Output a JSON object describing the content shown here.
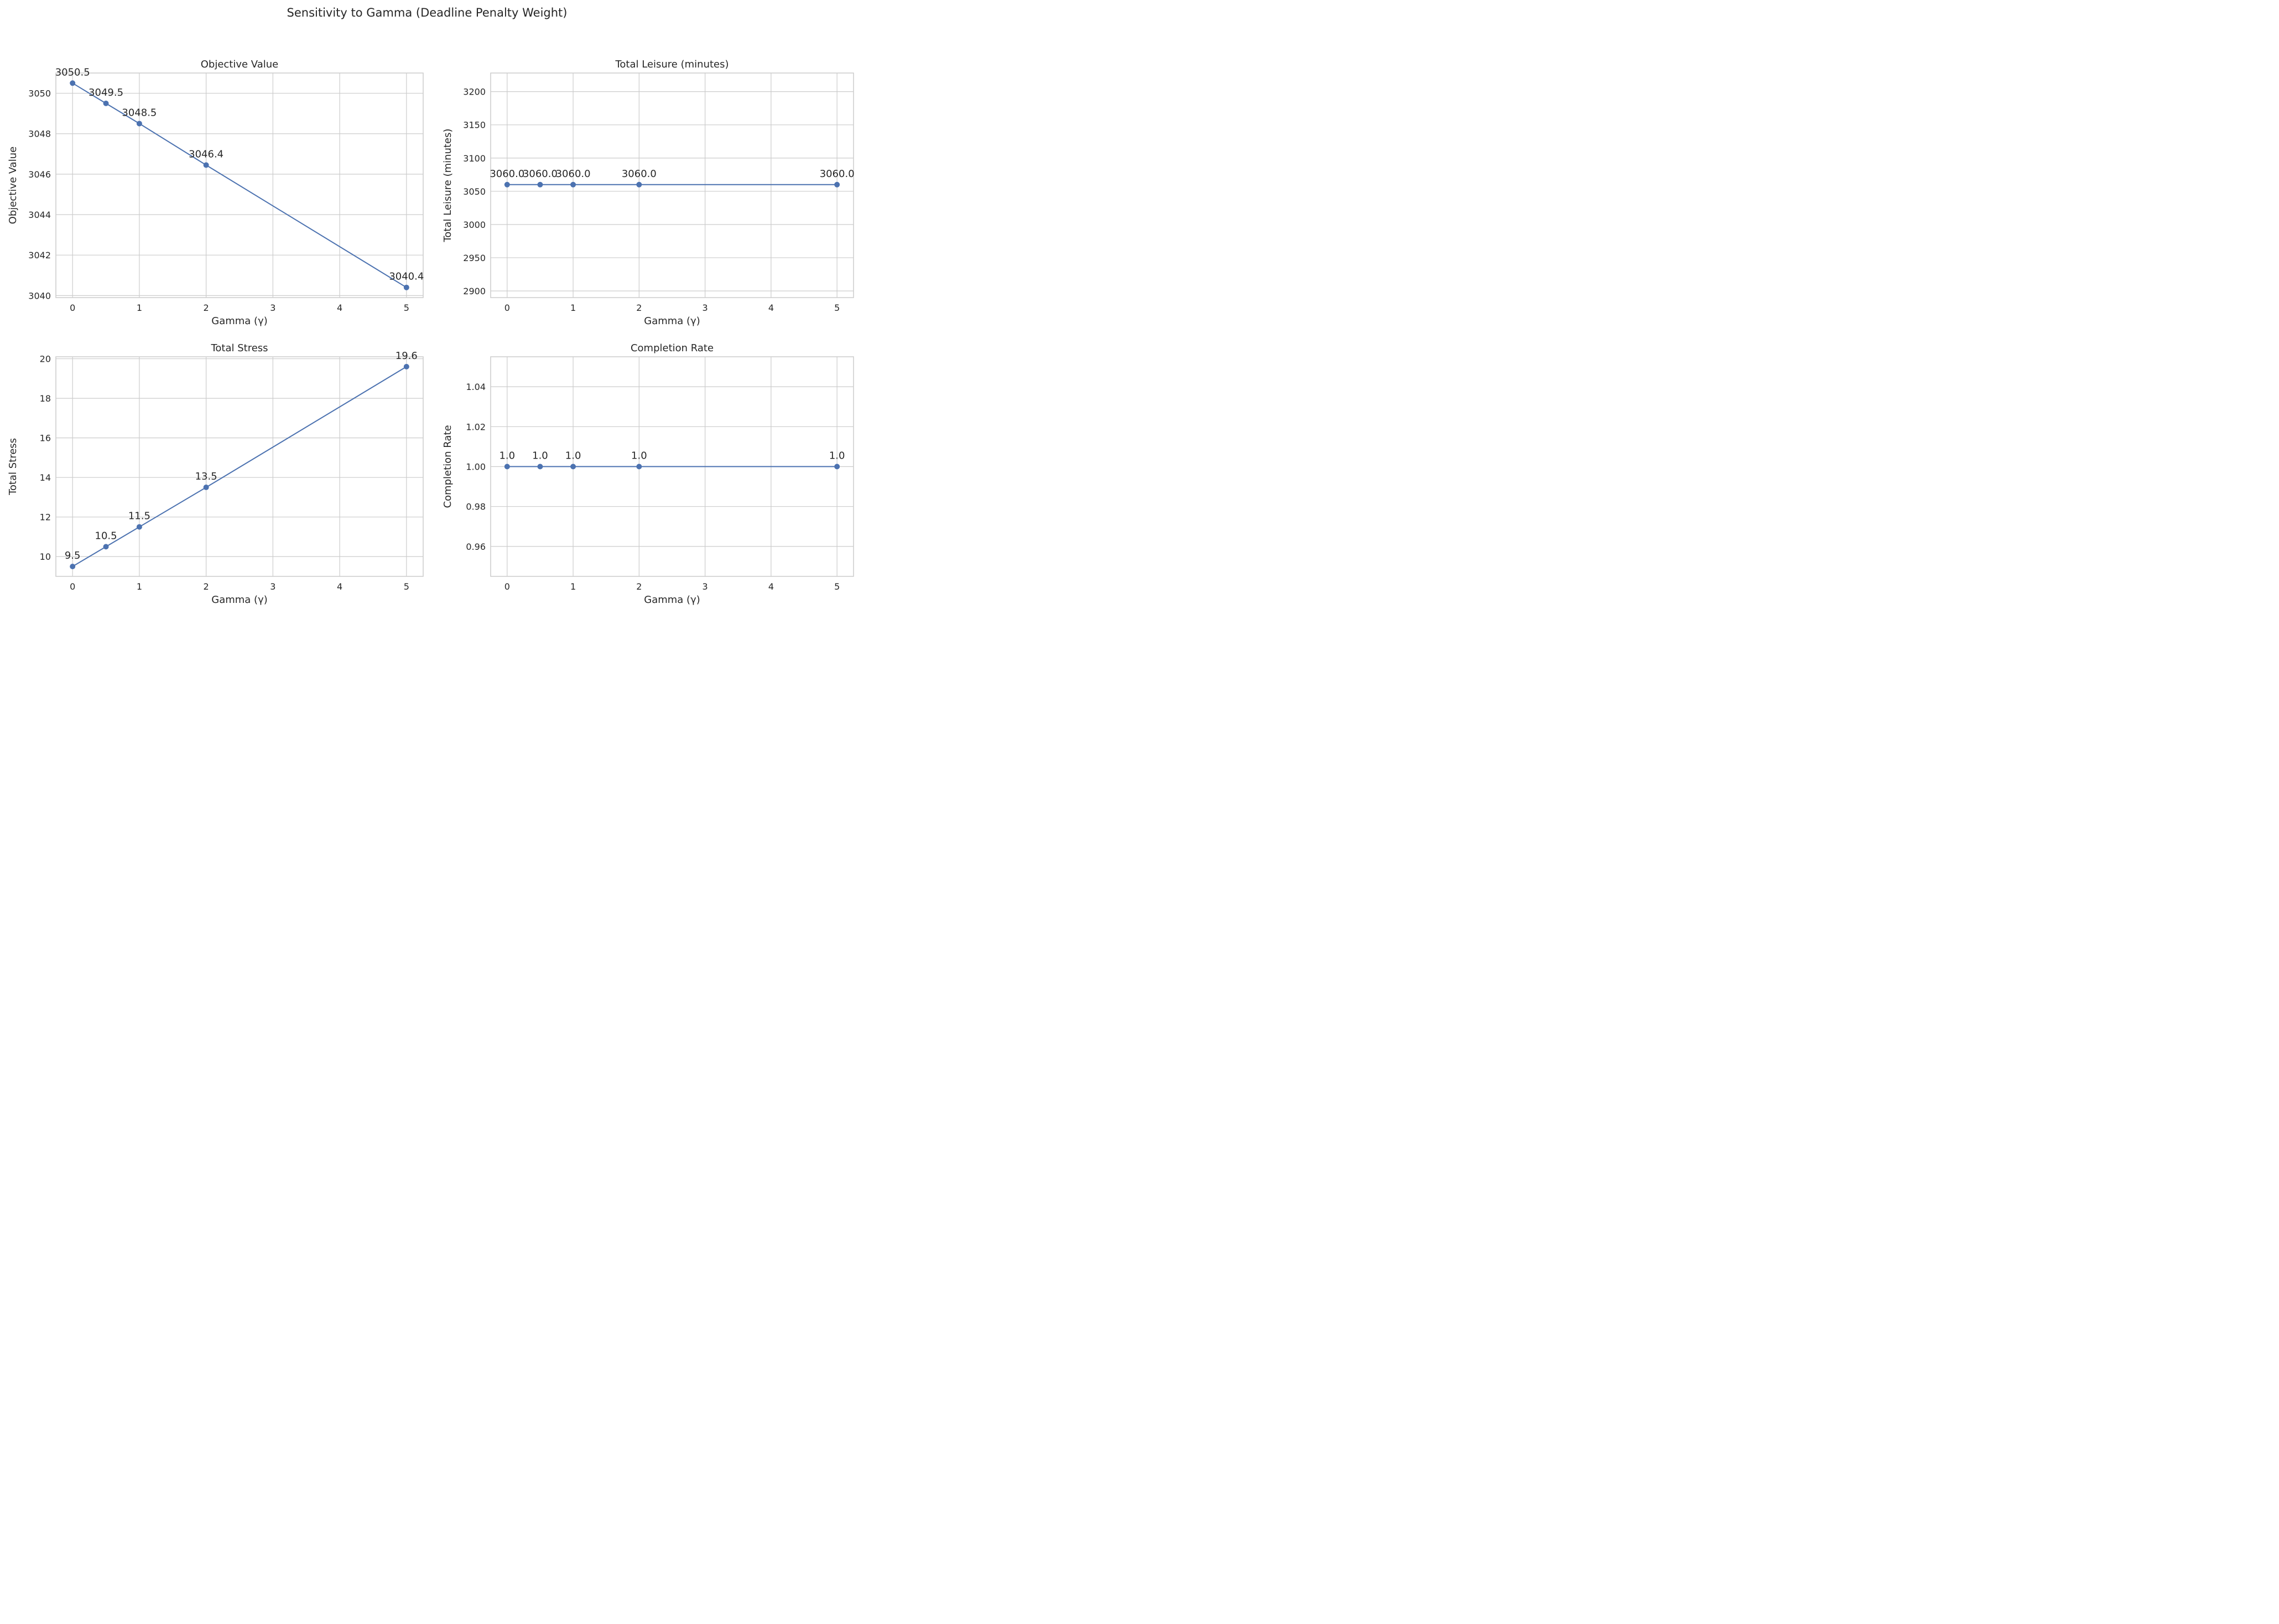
{
  "figure_title": "Sensitivity to Gamma (Deadline Penalty Weight)",
  "colors": {
    "series": "#4c72b0",
    "grid": "#cccccc",
    "text": "#262626",
    "background": "#ffffff"
  },
  "chart_data": [
    {
      "type": "line",
      "title": "Objective Value",
      "xlabel": "Gamma (γ)",
      "ylabel": "Objective Value",
      "x": [
        0,
        0.5,
        1,
        2,
        5
      ],
      "values": [
        3050.5,
        3049.5,
        3048.5,
        3046.45,
        3040.4
      ],
      "data_labels": [
        "3050.5",
        "3049.5",
        "3048.5",
        "3046.4",
        "3040.4"
      ],
      "xlim": [
        -0.25,
        5.25
      ],
      "ylim": [
        3039.9,
        3051.0
      ],
      "xticks": [
        0,
        1,
        2,
        3,
        4,
        5
      ],
      "yticks": [
        3040,
        3042,
        3044,
        3046,
        3048,
        3050
      ],
      "grid": true
    },
    {
      "type": "line",
      "title": "Total Leisure (minutes)",
      "xlabel": "Gamma (γ)",
      "ylabel": "Total Leisure (minutes)",
      "x": [
        0,
        0.5,
        1,
        2,
        5
      ],
      "values": [
        3060.0,
        3060.0,
        3060.0,
        3060.0,
        3060.0
      ],
      "data_labels": [
        "3060.0",
        "3060.0",
        "3060.0",
        "3060.0",
        "3060.0"
      ],
      "xlim": [
        -0.25,
        5.25
      ],
      "ylim": [
        2890,
        3228
      ],
      "xticks": [
        0,
        1,
        2,
        3,
        4,
        5
      ],
      "yticks": [
        2900,
        2950,
        3000,
        3050,
        3100,
        3150,
        3200
      ],
      "grid": true
    },
    {
      "type": "line",
      "title": "Total Stress",
      "xlabel": "Gamma (γ)",
      "ylabel": "Total Stress",
      "x": [
        0,
        0.5,
        1,
        2,
        5
      ],
      "values": [
        9.5,
        10.5,
        11.5,
        13.5,
        19.6
      ],
      "data_labels": [
        "9.5",
        "10.5",
        "11.5",
        "13.5",
        "19.6"
      ],
      "xlim": [
        -0.25,
        5.25
      ],
      "ylim": [
        9.0,
        20.1
      ],
      "xticks": [
        0,
        1,
        2,
        3,
        4,
        5
      ],
      "yticks": [
        10,
        12,
        14,
        16,
        18,
        20
      ],
      "grid": true
    },
    {
      "type": "line",
      "title": "Completion Rate",
      "xlabel": "Gamma (γ)",
      "ylabel": "Completion Rate",
      "x": [
        0,
        0.5,
        1,
        2,
        5
      ],
      "values": [
        1.0,
        1.0,
        1.0,
        1.0,
        1.0
      ],
      "data_labels": [
        "1.0",
        "1.0",
        "1.0",
        "1.0",
        "1.0"
      ],
      "xlim": [
        -0.25,
        5.25
      ],
      "ylim": [
        0.945,
        1.055
      ],
      "xticks": [
        0,
        1,
        2,
        3,
        4,
        5
      ],
      "yticks": [
        0.96,
        0.98,
        1.0,
        1.02,
        1.04
      ],
      "ytick_labels": [
        "0.96",
        "0.98",
        "1.00",
        "1.02",
        "1.04"
      ],
      "grid": true
    }
  ]
}
